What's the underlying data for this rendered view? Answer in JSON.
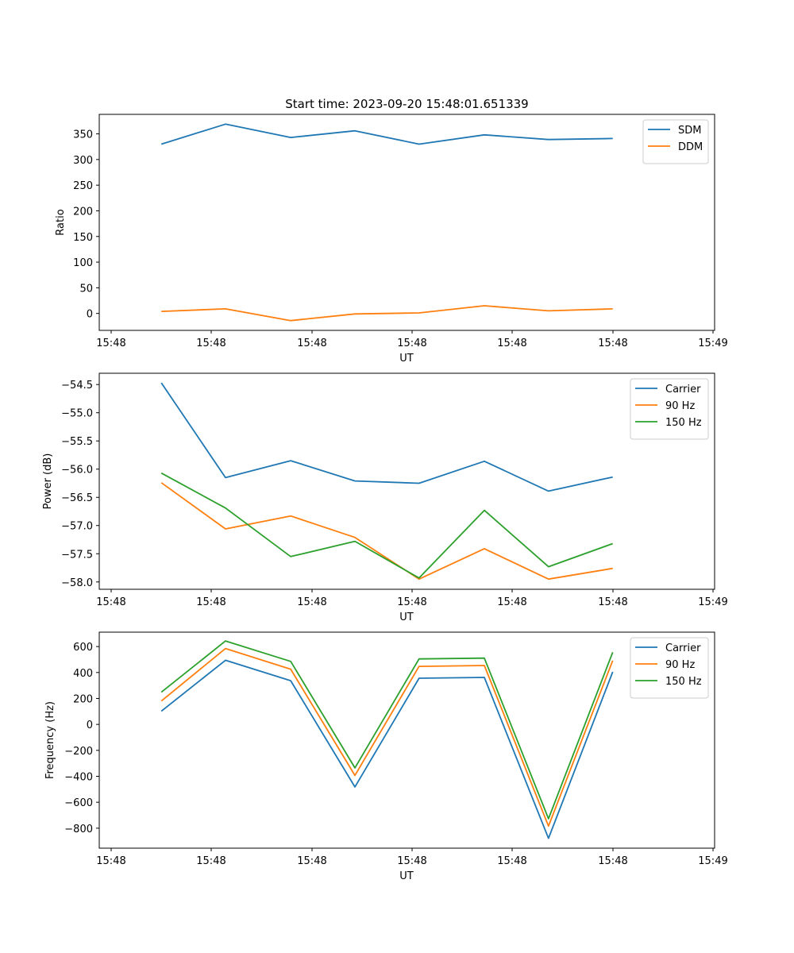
{
  "title": "Start time: 2023-09-20 15:48:01.651339",
  "chart_data": [
    {
      "type": "line",
      "id": "ratio",
      "xlabel": "UT",
      "ylabel": "Ratio",
      "xlim": [
        0,
        6.0
      ],
      "ylim": [
        -33,
        388
      ],
      "x": [
        0.5,
        1.14,
        1.79,
        2.43,
        3.07,
        3.72,
        4.36,
        5.0
      ],
      "x_ticks": [
        0,
        1,
        2,
        3,
        4,
        5,
        6
      ],
      "x_tick_labels": [
        "15:48",
        "15:48",
        "15:48",
        "15:48",
        "15:48",
        "15:48",
        "15:49"
      ],
      "y_ticks": [
        0,
        50,
        100,
        150,
        200,
        250,
        300,
        350
      ],
      "y_tick_labels": [
        "0",
        "50",
        "100",
        "150",
        "200",
        "250",
        "300",
        "350"
      ],
      "legend_position": "top-right",
      "series": [
        {
          "name": "SDM",
          "color": "#1f77b4",
          "values": [
            330,
            369,
            343,
            356,
            330,
            348,
            339,
            341
          ]
        },
        {
          "name": "DDM",
          "color": "#ff7f0e",
          "values": [
            4,
            9,
            -14,
            -1,
            1,
            15,
            5,
            9
          ]
        }
      ]
    },
    {
      "type": "line",
      "id": "power",
      "xlabel": "UT",
      "ylabel": "Power (dB)",
      "xlim": [
        0,
        6.0
      ],
      "ylim": [
        -58.13,
        -54.3
      ],
      "x": [
        0.5,
        1.14,
        1.79,
        2.43,
        3.07,
        3.72,
        4.36,
        5.0
      ],
      "x_ticks": [
        0,
        1,
        2,
        3,
        4,
        5,
        6
      ],
      "x_tick_labels": [
        "15:48",
        "15:48",
        "15:48",
        "15:48",
        "15:48",
        "15:48",
        "15:49"
      ],
      "y_ticks": [
        -58.0,
        -57.5,
        -57.0,
        -56.5,
        -56.0,
        -55.5,
        -55.0,
        -54.5
      ],
      "y_tick_labels": [
        "−58.0",
        "−57.5",
        "−57.0",
        "−56.5",
        "−56.0",
        "−55.5",
        "−55.0",
        "−54.5"
      ],
      "legend_position": "top-right",
      "series": [
        {
          "name": "Carrier",
          "color": "#1f77b4",
          "values": [
            -54.47,
            -56.15,
            -55.85,
            -56.21,
            -56.25,
            -55.86,
            -56.39,
            -56.14
          ]
        },
        {
          "name": "90 Hz",
          "color": "#ff7f0e",
          "values": [
            -56.24,
            -57.06,
            -56.83,
            -57.21,
            -57.95,
            -57.41,
            -57.95,
            -57.76
          ]
        },
        {
          "name": "150 Hz",
          "color": "#2ca02c",
          "values": [
            -56.07,
            -56.69,
            -57.55,
            -57.28,
            -57.93,
            -56.73,
            -57.73,
            -57.32
          ]
        }
      ]
    },
    {
      "type": "line",
      "id": "frequency",
      "xlabel": "UT",
      "ylabel": "Frequency (Hz)",
      "xlim": [
        0,
        6.0
      ],
      "ylim": [
        -954,
        711
      ],
      "x": [
        0.5,
        1.14,
        1.79,
        2.43,
        3.07,
        3.72,
        4.36,
        5.0
      ],
      "x_ticks": [
        0,
        1,
        2,
        3,
        4,
        5,
        6
      ],
      "x_tick_labels": [
        "15:48",
        "15:48",
        "15:48",
        "15:48",
        "15:48",
        "15:48",
        "15:49"
      ],
      "y_ticks": [
        -800,
        -600,
        -400,
        -200,
        0,
        200,
        400,
        600
      ],
      "y_tick_labels": [
        "−800",
        "−600",
        "−400",
        "−200",
        "0",
        "200",
        "400",
        "600"
      ],
      "legend_position": "top-right",
      "series": [
        {
          "name": "Carrier",
          "color": "#1f77b4",
          "values": [
            102,
            494,
            337,
            -482,
            356,
            362,
            -878,
            405
          ]
        },
        {
          "name": "90 Hz",
          "color": "#ff7f0e",
          "values": [
            180,
            585,
            426,
            -393,
            447,
            454,
            -784,
            492
          ]
        },
        {
          "name": "150 Hz",
          "color": "#2ca02c",
          "values": [
            248,
            643,
            486,
            -335,
            505,
            511,
            -727,
            556
          ]
        }
      ]
    }
  ]
}
